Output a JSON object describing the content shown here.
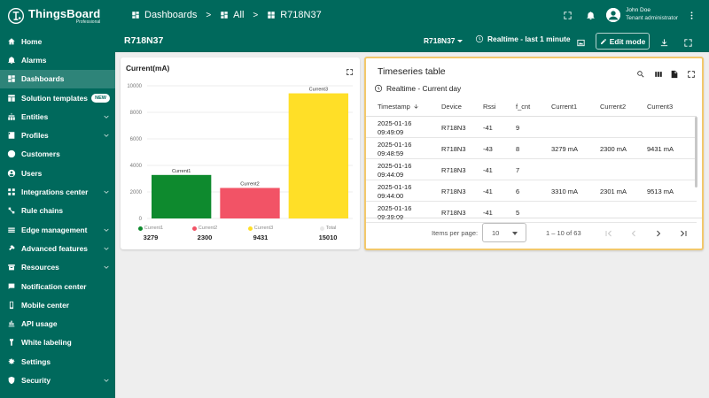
{
  "brand": {
    "name": "ThingsBoard",
    "edition": "Professional"
  },
  "sidebar": {
    "items": [
      {
        "label": "Home",
        "icon": "home-icon",
        "chevron": false,
        "active": false
      },
      {
        "label": "Alarms",
        "icon": "bell-icon",
        "chevron": false,
        "active": false
      },
      {
        "label": "Dashboards",
        "icon": "dashboard-icon",
        "chevron": false,
        "active": true
      },
      {
        "label": "Solution templates",
        "icon": "templates-icon",
        "chevron": false,
        "active": false,
        "badge": "NEW"
      },
      {
        "label": "Entities",
        "icon": "entities-icon",
        "chevron": true,
        "active": false
      },
      {
        "label": "Profiles",
        "icon": "profiles-icon",
        "chevron": true,
        "active": false
      },
      {
        "label": "Customers",
        "icon": "customers-icon",
        "chevron": false,
        "active": false
      },
      {
        "label": "Users",
        "icon": "users-icon",
        "chevron": false,
        "active": false
      },
      {
        "label": "Integrations center",
        "icon": "integrations-icon",
        "chevron": true,
        "active": false
      },
      {
        "label": "Rule chains",
        "icon": "rule-chains-icon",
        "chevron": false,
        "active": false
      },
      {
        "label": "Edge management",
        "icon": "edge-icon",
        "chevron": true,
        "active": false
      },
      {
        "label": "Advanced features",
        "icon": "advanced-icon",
        "chevron": true,
        "active": false
      },
      {
        "label": "Resources",
        "icon": "resources-icon",
        "chevron": true,
        "active": false
      },
      {
        "label": "Notification center",
        "icon": "notification-icon",
        "chevron": false,
        "active": false
      },
      {
        "label": "Mobile center",
        "icon": "mobile-icon",
        "chevron": false,
        "active": false
      },
      {
        "label": "API usage",
        "icon": "api-icon",
        "chevron": false,
        "active": false
      },
      {
        "label": "White labeling",
        "icon": "white-label-icon",
        "chevron": false,
        "active": false
      },
      {
        "label": "Settings",
        "icon": "settings-icon",
        "chevron": false,
        "active": false
      },
      {
        "label": "Security",
        "icon": "security-icon",
        "chevron": true,
        "active": false
      }
    ]
  },
  "topbar": {
    "breadcrumb": [
      {
        "label": "Dashboards",
        "icon": "dashboard-icon"
      },
      {
        "label": "All",
        "icon": "dashboard-icon"
      },
      {
        "label": "R718N37",
        "icon": "grid-icon"
      }
    ],
    "separator": ">",
    "user": {
      "name": "John Doe",
      "role": "Tenant administrator"
    }
  },
  "dashboard": {
    "title": "R718N37",
    "state_select": "R718N37",
    "timewindow": "Realtime - last 1 minute",
    "edit_label": "Edit mode"
  },
  "colors": {
    "primary": "#00695c",
    "current1": "#0e8a2e",
    "current2": "#f25366",
    "current3": "#ffdf27",
    "total": "#e8e8e8",
    "highlight_border": "#f2c86b"
  },
  "chart_widget": {
    "title": "Current(mA)"
  },
  "chart_data": {
    "type": "bar",
    "categories": [
      "Current1",
      "Current2",
      "Current3"
    ],
    "values": [
      3279,
      2300,
      9431
    ],
    "ylim": [
      0,
      10000
    ],
    "yticks": [
      0,
      2000,
      4000,
      6000,
      8000,
      10000
    ],
    "grid": true,
    "legend": [
      {
        "name": "Current1",
        "value": "3279"
      },
      {
        "name": "Current2",
        "value": "2300"
      },
      {
        "name": "Current3",
        "value": "9431"
      },
      {
        "name": "Total",
        "value": "15010"
      }
    ]
  },
  "table_widget": {
    "title": "Timeseries table",
    "subtitle": "Realtime - Current day",
    "columns": [
      "Timestamp",
      "Device",
      "Rssi",
      "f_cnt",
      "Current1",
      "Current2",
      "Current3"
    ],
    "rows": [
      {
        "date": "2025-01-16",
        "time": "09:49:09",
        "device": "R718N3",
        "rssi": "-41",
        "f_cnt": "9",
        "c1": "",
        "c2": "",
        "c3": ""
      },
      {
        "date": "2025-01-16",
        "time": "09:48:59",
        "device": "R718N3",
        "rssi": "-43",
        "f_cnt": "8",
        "c1": "3279 mA",
        "c2": "2300 mA",
        "c3": "9431 mA"
      },
      {
        "date": "2025-01-16",
        "time": "09:44:09",
        "device": "R718N3",
        "rssi": "-41",
        "f_cnt": "7",
        "c1": "",
        "c2": "",
        "c3": ""
      },
      {
        "date": "2025-01-16",
        "time": "09:44:00",
        "device": "R718N3",
        "rssi": "-41",
        "f_cnt": "6",
        "c1": "3310 mA",
        "c2": "2301 mA",
        "c3": "9513 mA"
      },
      {
        "date": "2025-01-16",
        "time": "09:39:09",
        "device": "R718N3",
        "rssi": "-41",
        "f_cnt": "5",
        "c1": "",
        "c2": "",
        "c3": ""
      }
    ],
    "pager": {
      "items_label": "Items per page:",
      "page_size": "10",
      "range": "1 – 10 of 63"
    }
  }
}
